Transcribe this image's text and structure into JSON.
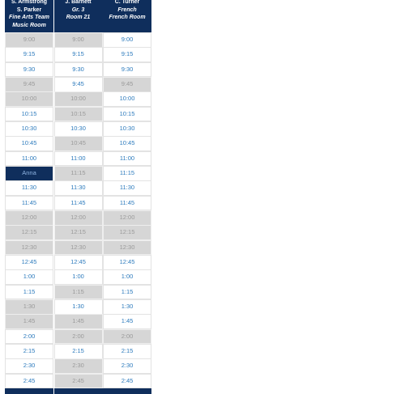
{
  "columns": [
    {
      "header": [
        "S. Armstrong",
        "S. Parker",
        "Fine Arts Team",
        "Music Room"
      ],
      "slots": [
        {
          "label": "9:00",
          "state": "closed"
        },
        {
          "label": "9:15",
          "state": "open"
        },
        {
          "label": "9:30",
          "state": "open"
        },
        {
          "label": "9:45",
          "state": "closed"
        },
        {
          "label": "10:00",
          "state": "closed"
        },
        {
          "label": "10:15",
          "state": "open"
        },
        {
          "label": "10:30",
          "state": "open"
        },
        {
          "label": "10:45",
          "state": "open"
        },
        {
          "label": "11:00",
          "state": "open"
        },
        {
          "label": "Anna",
          "state": "booked"
        },
        {
          "label": "11:30",
          "state": "open"
        },
        {
          "label": "11:45",
          "state": "open"
        },
        {
          "label": "12:00",
          "state": "closed"
        },
        {
          "label": "12:15",
          "state": "closed"
        },
        {
          "label": "12:30",
          "state": "closed"
        },
        {
          "label": "12:45",
          "state": "open"
        },
        {
          "label": "1:00",
          "state": "open"
        },
        {
          "label": "1:15",
          "state": "open"
        },
        {
          "label": "1:30",
          "state": "closed"
        },
        {
          "label": "1:45",
          "state": "closed"
        },
        {
          "label": "2:00",
          "state": "open"
        },
        {
          "label": "2:15",
          "state": "open"
        },
        {
          "label": "2:30",
          "state": "open"
        },
        {
          "label": "2:45",
          "state": "open"
        }
      ]
    },
    {
      "header": [
        "J. Barnett",
        "Gr. 3",
        "Room 21"
      ],
      "slots": [
        {
          "label": "9:00",
          "state": "closed"
        },
        {
          "label": "9:15",
          "state": "open"
        },
        {
          "label": "9:30",
          "state": "open"
        },
        {
          "label": "9:45",
          "state": "open"
        },
        {
          "label": "10:00",
          "state": "closed"
        },
        {
          "label": "10:15",
          "state": "closed"
        },
        {
          "label": "10:30",
          "state": "open"
        },
        {
          "label": "10:45",
          "state": "closed"
        },
        {
          "label": "11:00",
          "state": "open"
        },
        {
          "label": "11:15",
          "state": "closed"
        },
        {
          "label": "11:30",
          "state": "open"
        },
        {
          "label": "11:45",
          "state": "open"
        },
        {
          "label": "12:00",
          "state": "closed"
        },
        {
          "label": "12:15",
          "state": "closed"
        },
        {
          "label": "12:30",
          "state": "closed"
        },
        {
          "label": "12:45",
          "state": "open"
        },
        {
          "label": "1:00",
          "state": "open"
        },
        {
          "label": "1:15",
          "state": "closed"
        },
        {
          "label": "1:30",
          "state": "open"
        },
        {
          "label": "1:45",
          "state": "closed"
        },
        {
          "label": "2:00",
          "state": "closed"
        },
        {
          "label": "2:15",
          "state": "open"
        },
        {
          "label": "2:30",
          "state": "closed"
        },
        {
          "label": "2:45",
          "state": "closed"
        }
      ]
    },
    {
      "header": [
        "C. Turner",
        "French",
        "French Room"
      ],
      "slots": [
        {
          "label": "9:00",
          "state": "open"
        },
        {
          "label": "9:15",
          "state": "open"
        },
        {
          "label": "9:30",
          "state": "open"
        },
        {
          "label": "9:45",
          "state": "closed"
        },
        {
          "label": "10:00",
          "state": "open"
        },
        {
          "label": "10:15",
          "state": "open"
        },
        {
          "label": "10:30",
          "state": "open"
        },
        {
          "label": "10:45",
          "state": "open"
        },
        {
          "label": "11:00",
          "state": "open"
        },
        {
          "label": "11:15",
          "state": "open"
        },
        {
          "label": "11:30",
          "state": "open"
        },
        {
          "label": "11:45",
          "state": "open"
        },
        {
          "label": "12:00",
          "state": "closed"
        },
        {
          "label": "12:15",
          "state": "closed"
        },
        {
          "label": "12:30",
          "state": "closed"
        },
        {
          "label": "12:45",
          "state": "open"
        },
        {
          "label": "1:00",
          "state": "open"
        },
        {
          "label": "1:15",
          "state": "open"
        },
        {
          "label": "1:30",
          "state": "open"
        },
        {
          "label": "1:45",
          "state": "open"
        },
        {
          "label": "2:00",
          "state": "closed"
        },
        {
          "label": "2:15",
          "state": "open"
        },
        {
          "label": "2:30",
          "state": "open"
        },
        {
          "label": "2:45",
          "state": "open"
        }
      ]
    }
  ]
}
